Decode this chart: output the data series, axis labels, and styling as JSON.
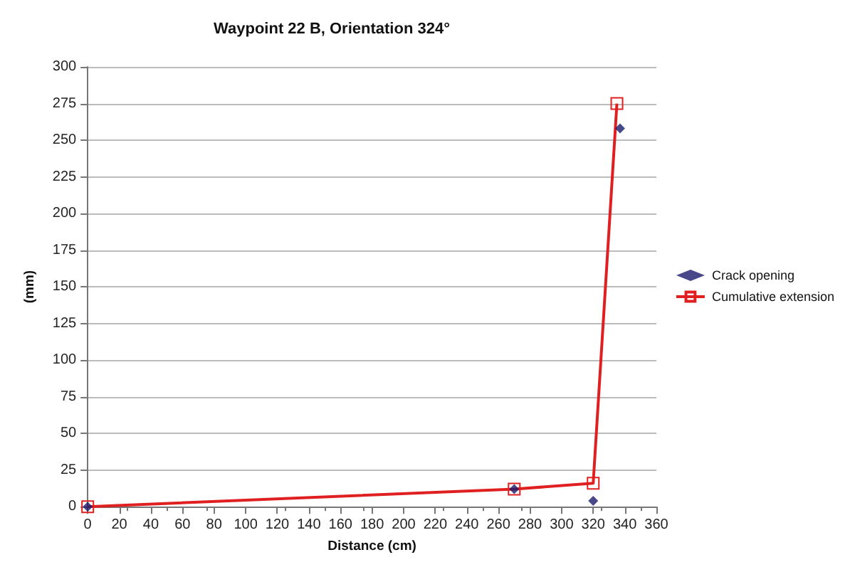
{
  "chart_data": {
    "type": "line",
    "title": "Waypoint 22 B, Orientation 324°",
    "xlabel": "Distance (cm)",
    "ylabel": "(mm)",
    "xlim": [
      0,
      360
    ],
    "xticks": [
      0,
      20,
      40,
      60,
      80,
      100,
      120,
      140,
      160,
      180,
      200,
      220,
      240,
      260,
      280,
      300,
      320,
      340,
      360
    ],
    "ylim": [
      0,
      300
    ],
    "yticks": [
      0,
      25,
      50,
      75,
      100,
      125,
      150,
      175,
      200,
      225,
      250,
      275,
      300
    ],
    "grid": "y",
    "legend": "right",
    "series": [
      {
        "name": "Crack opening",
        "type": "scatter",
        "marker": "diamond",
        "color": "#1a1a6e",
        "x": [
          0,
          270,
          320,
          337
        ],
        "values": [
          0,
          12,
          4,
          258
        ]
      },
      {
        "name": "Cumulative extension",
        "marker": "square",
        "color": "#e02020",
        "x": [
          0,
          270,
          320,
          335
        ],
        "values": [
          0,
          12,
          16,
          275
        ]
      }
    ]
  }
}
